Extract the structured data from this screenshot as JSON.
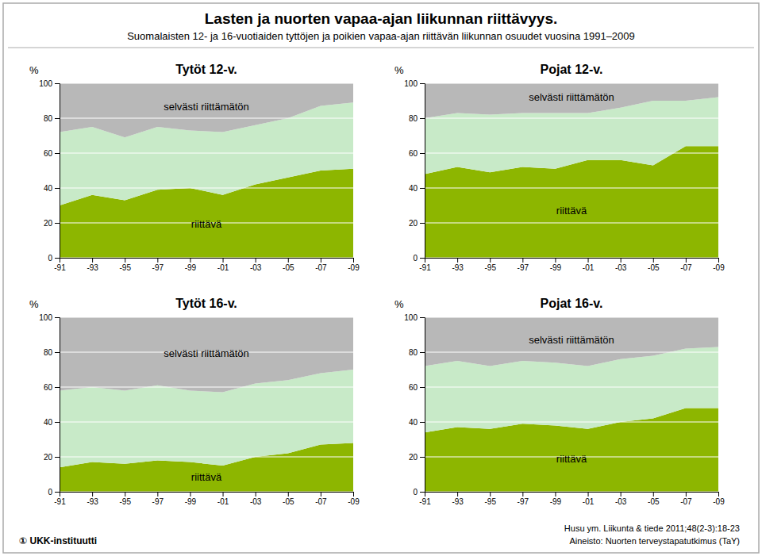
{
  "title": "Lasten ja nuorten vapaa-ajan liikunnan riittävyys.",
  "subtitle": "Suomalaisten 12- ja 16-vuotiaiden tyttöjen ja poikien vapaa-ajan riittävän liikunnan osuudet vuosina 1991–2009",
  "annotations": [
    "Husu ym. Liikunta & tiede 2011;48(2-3):18-23",
    "Aineisto: Nuorten terveystapatutkimus (TaY)",
    "① UKK-instituutti"
  ],
  "chart_data": [
    {
      "type": "area",
      "stacked": true,
      "grid": true,
      "title": "Tytöt 12-v.",
      "y_label": "%",
      "categories": [
        "-91",
        "-93",
        "-95",
        "-97",
        "-99",
        "-01",
        "-03",
        "-05",
        "-07",
        "-09"
      ],
      "ylim": [
        0,
        100
      ],
      "yticks": [
        0,
        20,
        40,
        60,
        80,
        100
      ],
      "series": [
        {
          "name": "riittävä",
          "color": "#8db600",
          "values": [
            30,
            36,
            33,
            39,
            40,
            36,
            42,
            46,
            50,
            51
          ]
        },
        {
          "color": "#c8eac8",
          "values": [
            42,
            39,
            36,
            36,
            33,
            36,
            34,
            34,
            37,
            38
          ]
        },
        {
          "name": "selvästi riittämätön",
          "color": "#b8b8b8",
          "values": [
            28,
            25,
            31,
            25,
            27,
            28,
            24,
            20,
            13,
            11
          ]
        }
      ]
    },
    {
      "type": "area",
      "stacked": true,
      "grid": true,
      "title": "Pojat 12-v.",
      "y_label": "%",
      "categories": [
        "-91",
        "-93",
        "-95",
        "-97",
        "-99",
        "-01",
        "-03",
        "-05",
        "-07",
        "-09"
      ],
      "ylim": [
        0,
        100
      ],
      "yticks": [
        0,
        20,
        40,
        60,
        80,
        100
      ],
      "series": [
        {
          "name": "riittävä",
          "color": "#8db600",
          "values": [
            48,
            52,
            49,
            52,
            51,
            56,
            56,
            53,
            64,
            64
          ]
        },
        {
          "color": "#c8eac8",
          "values": [
            32,
            31,
            33,
            31,
            32,
            27,
            30,
            37,
            26,
            28
          ]
        },
        {
          "name": "selvästi riittämätön",
          "color": "#b8b8b8",
          "values": [
            20,
            17,
            18,
            17,
            17,
            17,
            14,
            10,
            10,
            8
          ]
        }
      ]
    },
    {
      "type": "area",
      "stacked": true,
      "grid": true,
      "title": "Tytöt 16-v.",
      "y_label": "%",
      "categories": [
        "-91",
        "-93",
        "-95",
        "-97",
        "-99",
        "-01",
        "-03",
        "-05",
        "-07",
        "-09"
      ],
      "ylim": [
        0,
        100
      ],
      "yticks": [
        0,
        20,
        40,
        60,
        80,
        100
      ],
      "series": [
        {
          "name": "riittävä",
          "color": "#8db600",
          "values": [
            14,
            17,
            16,
            18,
            17,
            15,
            20,
            22,
            27,
            28
          ]
        },
        {
          "color": "#c8eac8",
          "values": [
            44,
            43,
            42,
            43,
            41,
            42,
            42,
            42,
            41,
            42
          ]
        },
        {
          "name": "selvästi riittämätön",
          "color": "#b8b8b8",
          "values": [
            42,
            40,
            42,
            39,
            42,
            43,
            38,
            36,
            32,
            30
          ]
        }
      ]
    },
    {
      "type": "area",
      "stacked": true,
      "grid": true,
      "title": "Pojat 16-v.",
      "y_label": "%",
      "categories": [
        "-91",
        "-93",
        "-95",
        "-97",
        "-99",
        "-01",
        "-03",
        "-05",
        "-07",
        "-09"
      ],
      "ylim": [
        0,
        100
      ],
      "yticks": [
        0,
        20,
        40,
        60,
        80,
        100
      ],
      "series": [
        {
          "name": "riittävä",
          "color": "#8db600",
          "values": [
            34,
            37,
            36,
            39,
            38,
            36,
            40,
            42,
            48,
            48
          ]
        },
        {
          "color": "#c8eac8",
          "values": [
            38,
            38,
            36,
            36,
            36,
            36,
            36,
            36,
            34,
            35
          ]
        },
        {
          "name": "selvästi riittämätön",
          "color": "#b8b8b8",
          "values": [
            28,
            25,
            28,
            25,
            26,
            28,
            24,
            22,
            18,
            17
          ]
        }
      ]
    }
  ]
}
